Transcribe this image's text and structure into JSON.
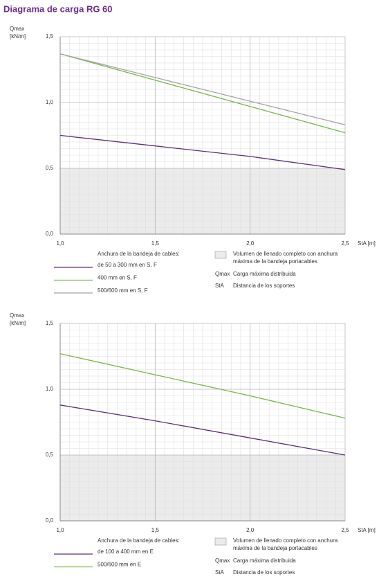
{
  "header": {
    "title": "Diagrama de carga  RG 60"
  },
  "chart_data": [
    {
      "type": "line",
      "ylabel": [
        "Qmax",
        "[kN/m]"
      ],
      "xlabel": "StA [m]",
      "x": [
        1.0,
        1.5,
        2.0,
        2.5
      ],
      "series": [
        {
          "name": "de 50 a 300 mm en S, F",
          "color": "#5c2d7e",
          "values": [
            0.75,
            0.67,
            0.59,
            0.49
          ]
        },
        {
          "name": "400 mm en S, F",
          "color": "#7ab648",
          "values": [
            1.37,
            1.17,
            0.97,
            0.77
          ]
        },
        {
          "name": "500/600 mm en S, F",
          "color": "#a5a5a5",
          "values": [
            1.37,
            1.19,
            1.01,
            0.83
          ]
        }
      ],
      "xlim": [
        1.0,
        2.5
      ],
      "ylim": [
        0,
        1.5
      ],
      "xticks": [
        {
          "value": 1.0,
          "label": "1,0"
        },
        {
          "value": 1.5,
          "label": "1,5"
        },
        {
          "value": 2.0,
          "label": "2,0"
        },
        {
          "value": 2.5,
          "label": "2,5"
        }
      ],
      "yticks": [
        {
          "value": 0,
          "label": "0,0"
        },
        {
          "value": 0.5,
          "label": "0,5"
        },
        {
          "value": 1.0,
          "label": "1,0"
        },
        {
          "value": 1.5,
          "label": "1,5"
        }
      ],
      "xminor": [
        1.05,
        1.1,
        1.15,
        1.2,
        1.25,
        1.3,
        1.35,
        1.4,
        1.45,
        1.55,
        1.6,
        1.65,
        1.7,
        1.75,
        1.8,
        1.85,
        1.9,
        1.95,
        2.05,
        2.1,
        2.15,
        2.2,
        2.25,
        2.3,
        2.35,
        2.4,
        2.45
      ],
      "yminor": [
        0.05,
        0.1,
        0.15,
        0.2,
        0.25,
        0.3,
        0.35,
        0.4,
        0.45,
        0.55,
        0.6,
        0.65,
        0.7,
        0.75,
        0.8,
        0.85,
        0.9,
        0.95,
        1.05,
        1.1,
        1.15,
        1.2,
        1.25,
        1.3,
        1.35,
        1.4,
        1.45
      ],
      "grid": true,
      "legend_title": "Anchura de la bandeja de cables:",
      "shade": {
        "from": 0,
        "to": 0.5,
        "color": "#ebebeb",
        "label": [
          "Volumen de llenado completo con anchura",
          "máxima de la bandeja portacables"
        ]
      },
      "notes": [
        {
          "abbr": "Qmax",
          "text": "Carga máxima distribuida"
        },
        {
          "abbr": "StA",
          "text": "Distancia de los soportes"
        }
      ]
    },
    {
      "type": "line",
      "ylabel": [
        "Qmax",
        "[kN/m]"
      ],
      "xlabel": "StA [m]",
      "x": [
        1.0,
        1.5,
        2.0,
        2.5
      ],
      "series": [
        {
          "name": "de 100 a 400 mm en E",
          "color": "#5c2d7e",
          "values": [
            0.88,
            0.76,
            0.63,
            0.5
          ]
        },
        {
          "name": "500/600 mm en E",
          "color": "#7ab648",
          "values": [
            1.27,
            1.11,
            0.95,
            0.78
          ]
        }
      ],
      "xlim": [
        1.0,
        2.5
      ],
      "ylim": [
        0,
        1.5
      ],
      "xticks": [
        {
          "value": 1.0,
          "label": "1,0"
        },
        {
          "value": 1.5,
          "label": "1,5"
        },
        {
          "value": 2.0,
          "label": "2,0"
        },
        {
          "value": 2.5,
          "label": "2,5"
        }
      ],
      "yticks": [
        {
          "value": 0,
          "label": "0,0"
        },
        {
          "value": 0.5,
          "label": "0,5"
        },
        {
          "value": 1.0,
          "label": "1,0"
        },
        {
          "value": 1.5,
          "label": "1,5"
        }
      ],
      "xminor": [
        1.05,
        1.1,
        1.15,
        1.2,
        1.25,
        1.3,
        1.35,
        1.4,
        1.45,
        1.55,
        1.6,
        1.65,
        1.7,
        1.75,
        1.8,
        1.85,
        1.9,
        1.95,
        2.05,
        2.1,
        2.15,
        2.2,
        2.25,
        2.3,
        2.35,
        2.4,
        2.45
      ],
      "yminor": [
        0.05,
        0.1,
        0.15,
        0.2,
        0.25,
        0.3,
        0.35,
        0.4,
        0.45,
        0.55,
        0.6,
        0.65,
        0.7,
        0.75,
        0.8,
        0.85,
        0.9,
        0.95,
        1.05,
        1.1,
        1.15,
        1.2,
        1.25,
        1.3,
        1.35,
        1.4,
        1.45
      ],
      "grid": true,
      "legend_title": "Anchura de la bandeja de cables:",
      "shade": {
        "from": 0,
        "to": 0.5,
        "color": "#ebebeb",
        "label": [
          "Volumen de llenado completo con anchura",
          "máxima de la bandeja portacables"
        ]
      },
      "notes": [
        {
          "abbr": "Qmax",
          "text": "Carga máxima distribuida"
        },
        {
          "abbr": "StA",
          "text": "Distancia de los soportes"
        }
      ]
    }
  ]
}
